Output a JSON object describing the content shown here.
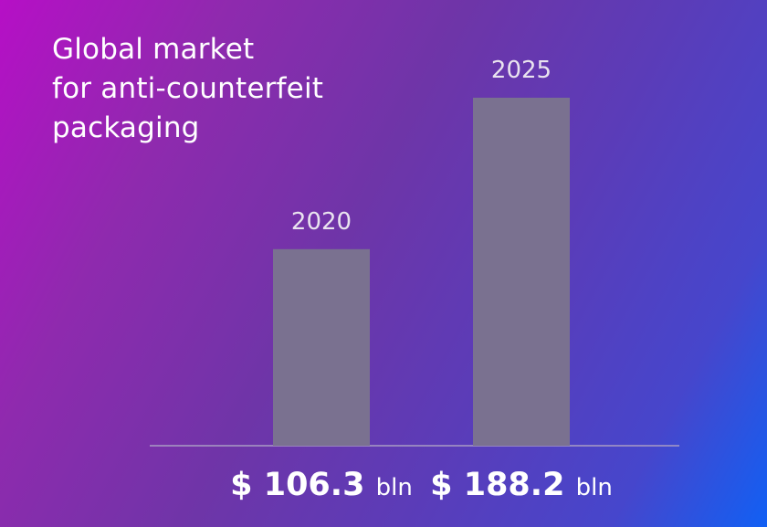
{
  "title_lines": [
    "Global market",
    "for anti-counterfeit",
    "packaging"
  ],
  "colors": {
    "bar": "#7a7190",
    "background_start": "#b60fc6",
    "background_end": "#1160f4"
  },
  "chart_data": {
    "type": "bar",
    "title": "Global market for anti-counterfeit packaging",
    "categories": [
      "2020",
      "2025"
    ],
    "values": [
      106.3,
      188.2
    ],
    "value_labels": [
      {
        "currency": "$",
        "amount": "106.3",
        "unit": "bln"
      },
      {
        "currency": "$",
        "amount": "188.2",
        "unit": "bln"
      }
    ],
    "unit": "bln",
    "ylim": [
      0,
      188.2
    ],
    "grid": false,
    "xlabel": "",
    "ylabel": ""
  }
}
